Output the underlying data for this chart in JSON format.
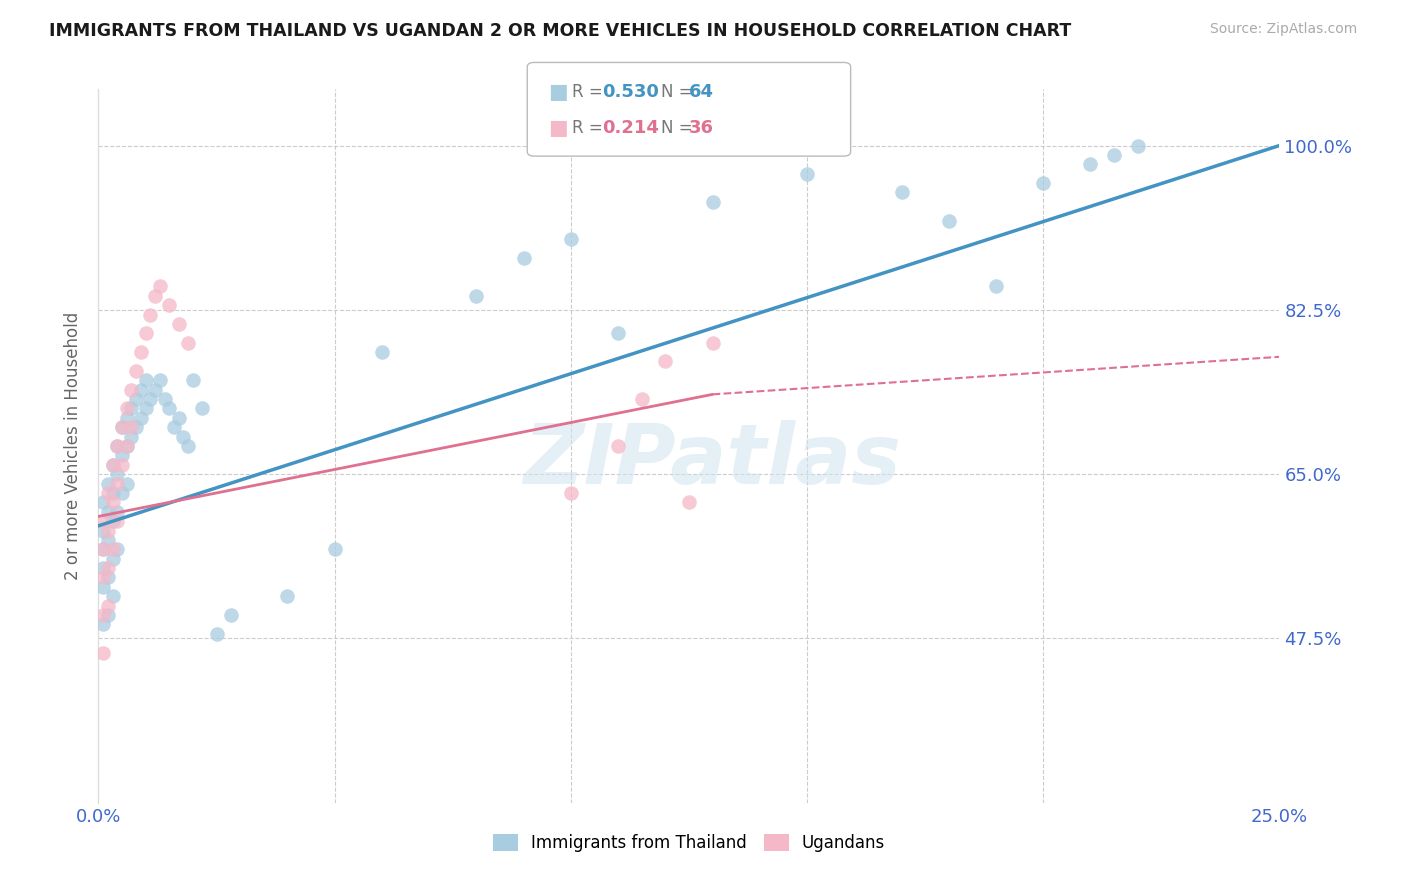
{
  "title": "IMMIGRANTS FROM THAILAND VS UGANDAN 2 OR MORE VEHICLES IN HOUSEHOLD CORRELATION CHART",
  "source": "Source: ZipAtlas.com",
  "ylabel": "2 or more Vehicles in Household",
  "ytick_labels": [
    "100.0%",
    "82.5%",
    "65.0%",
    "47.5%"
  ],
  "ytick_values": [
    1.0,
    0.825,
    0.65,
    0.475
  ],
  "title_color": "#1a1a1a",
  "source_color": "#aaaaaa",
  "watermark": "ZIPatlas",
  "blue_color": "#a8cce0",
  "pink_color": "#f4b8c8",
  "line_blue": "#4393c3",
  "line_pink": "#e07090",
  "axis_label_color": "#4169cd",
  "xmin": 0.0,
  "xmax": 0.25,
  "ymin": 0.3,
  "ymax": 1.06,
  "grid_color": "#cccccc",
  "background_color": "#ffffff",
  "thailand_x": [
    0.001,
    0.001,
    0.001,
    0.001,
    0.001,
    0.001,
    0.002,
    0.002,
    0.002,
    0.002,
    0.002,
    0.003,
    0.003,
    0.003,
    0.003,
    0.003,
    0.004,
    0.004,
    0.004,
    0.004,
    0.005,
    0.005,
    0.005,
    0.006,
    0.006,
    0.006,
    0.007,
    0.007,
    0.008,
    0.008,
    0.009,
    0.009,
    0.01,
    0.01,
    0.011,
    0.012,
    0.013,
    0.014,
    0.015,
    0.016,
    0.017,
    0.018,
    0.019,
    0.02,
    0.022,
    0.025,
    0.028,
    0.04,
    0.05,
    0.06,
    0.08,
    0.09,
    0.1,
    0.11,
    0.13,
    0.15,
    0.17,
    0.18,
    0.19,
    0.2,
    0.21,
    0.215,
    0.22
  ],
  "thailand_y": [
    0.62,
    0.59,
    0.57,
    0.55,
    0.53,
    0.49,
    0.64,
    0.61,
    0.58,
    0.54,
    0.5,
    0.66,
    0.63,
    0.6,
    0.56,
    0.52,
    0.68,
    0.65,
    0.61,
    0.57,
    0.7,
    0.67,
    0.63,
    0.71,
    0.68,
    0.64,
    0.72,
    0.69,
    0.73,
    0.7,
    0.74,
    0.71,
    0.75,
    0.72,
    0.73,
    0.74,
    0.75,
    0.73,
    0.72,
    0.7,
    0.71,
    0.69,
    0.68,
    0.75,
    0.72,
    0.48,
    0.5,
    0.52,
    0.57,
    0.78,
    0.84,
    0.88,
    0.9,
    0.8,
    0.94,
    0.97,
    0.95,
    0.92,
    0.85,
    0.96,
    0.98,
    0.99,
    1.0
  ],
  "uganda_x": [
    0.001,
    0.001,
    0.001,
    0.001,
    0.001,
    0.002,
    0.002,
    0.002,
    0.002,
    0.003,
    0.003,
    0.003,
    0.004,
    0.004,
    0.004,
    0.005,
    0.005,
    0.006,
    0.006,
    0.007,
    0.007,
    0.008,
    0.009,
    0.01,
    0.011,
    0.012,
    0.013,
    0.015,
    0.017,
    0.019,
    0.1,
    0.11,
    0.115,
    0.12,
    0.125,
    0.13
  ],
  "uganda_y": [
    0.6,
    0.57,
    0.54,
    0.5,
    0.46,
    0.63,
    0.59,
    0.55,
    0.51,
    0.66,
    0.62,
    0.57,
    0.68,
    0.64,
    0.6,
    0.7,
    0.66,
    0.72,
    0.68,
    0.74,
    0.7,
    0.76,
    0.78,
    0.8,
    0.82,
    0.84,
    0.85,
    0.83,
    0.81,
    0.79,
    0.63,
    0.68,
    0.73,
    0.77,
    0.62,
    0.79
  ]
}
